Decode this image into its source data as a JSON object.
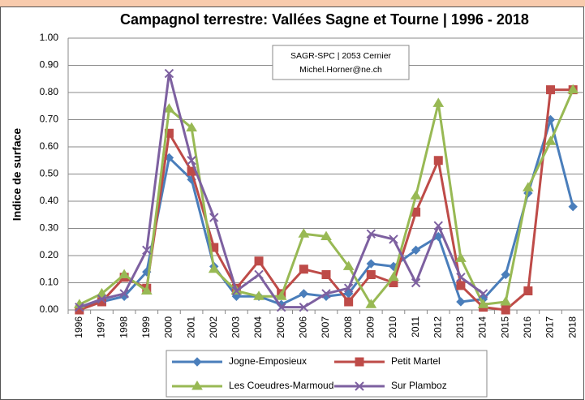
{
  "chart_data": {
    "type": "line",
    "title": "Campagnol terrestre: Vallées Sagne et Tourne | 1996 - 2018",
    "annotation": [
      "SAGR-SPC | 2053 Cernier",
      "Michel.Horner@ne.ch"
    ],
    "y_label": "Indice de surface",
    "categories": [
      "1996",
      "1997",
      "1998",
      "1999",
      "2000",
      "2001",
      "2002",
      "2003",
      "2004",
      "2005",
      "2006",
      "2007",
      "2008",
      "2009",
      "2010",
      "2011",
      "2012",
      "2013",
      "2014",
      "2015",
      "2016",
      "2017",
      "2018"
    ],
    "series": [
      {
        "name": "Jogne-Emposieux",
        "color": "#4a7ebb",
        "marker": "diamond",
        "values": [
          0.01,
          0.03,
          0.05,
          0.14,
          0.56,
          0.48,
          0.16,
          0.05,
          0.05,
          0.02,
          0.06,
          0.05,
          0.06,
          0.17,
          0.16,
          0.22,
          0.27,
          0.03,
          0.04,
          0.13,
          0.43,
          0.7,
          0.38
        ]
      },
      {
        "name": "Petit Martel",
        "color": "#be4b48",
        "marker": "square",
        "values": [
          0.0,
          0.03,
          0.12,
          0.08,
          0.65,
          0.51,
          0.23,
          0.08,
          0.18,
          0.06,
          0.15,
          0.13,
          0.03,
          0.13,
          0.1,
          0.36,
          0.55,
          0.09,
          0.01,
          0.0,
          0.07,
          0.81,
          0.81
        ]
      },
      {
        "name": "Les Coeudres-Marmoud",
        "color": "#98b954",
        "marker": "triangle",
        "values": [
          0.02,
          0.06,
          0.13,
          0.07,
          0.74,
          0.67,
          0.15,
          0.07,
          0.05,
          0.05,
          0.28,
          0.27,
          0.16,
          0.02,
          0.12,
          0.42,
          0.76,
          0.19,
          0.02,
          0.03,
          0.45,
          0.62,
          0.81
        ]
      },
      {
        "name": "Sur Plamboz",
        "color": "#7d60a0",
        "marker": "x",
        "values": [
          0.01,
          0.04,
          0.06,
          0.22,
          0.87,
          0.55,
          0.34,
          0.07,
          0.13,
          0.01,
          0.01,
          0.06,
          0.08,
          0.28,
          0.26,
          0.1,
          0.31,
          0.12,
          0.06,
          null,
          null,
          null,
          null
        ]
      }
    ],
    "ylim": [
      0,
      1
    ],
    "yticks": [
      {
        "value": 0,
        "label": "0.00"
      },
      {
        "value": 0.1,
        "label": "0.10"
      },
      {
        "value": 0.2,
        "label": "0.20"
      },
      {
        "value": 0.3,
        "label": "0.30"
      },
      {
        "value": 0.4,
        "label": "0.40"
      },
      {
        "value": 0.5,
        "label": "0.50"
      },
      {
        "value": 0.6,
        "label": "0.60"
      },
      {
        "value": 0.7,
        "label": "0.70"
      },
      {
        "value": 0.8,
        "label": "0.80"
      },
      {
        "value": 0.9,
        "label": "0.90"
      },
      {
        "value": 1,
        "label": "1.00"
      }
    ],
    "grid": true,
    "legend": "bottom"
  }
}
